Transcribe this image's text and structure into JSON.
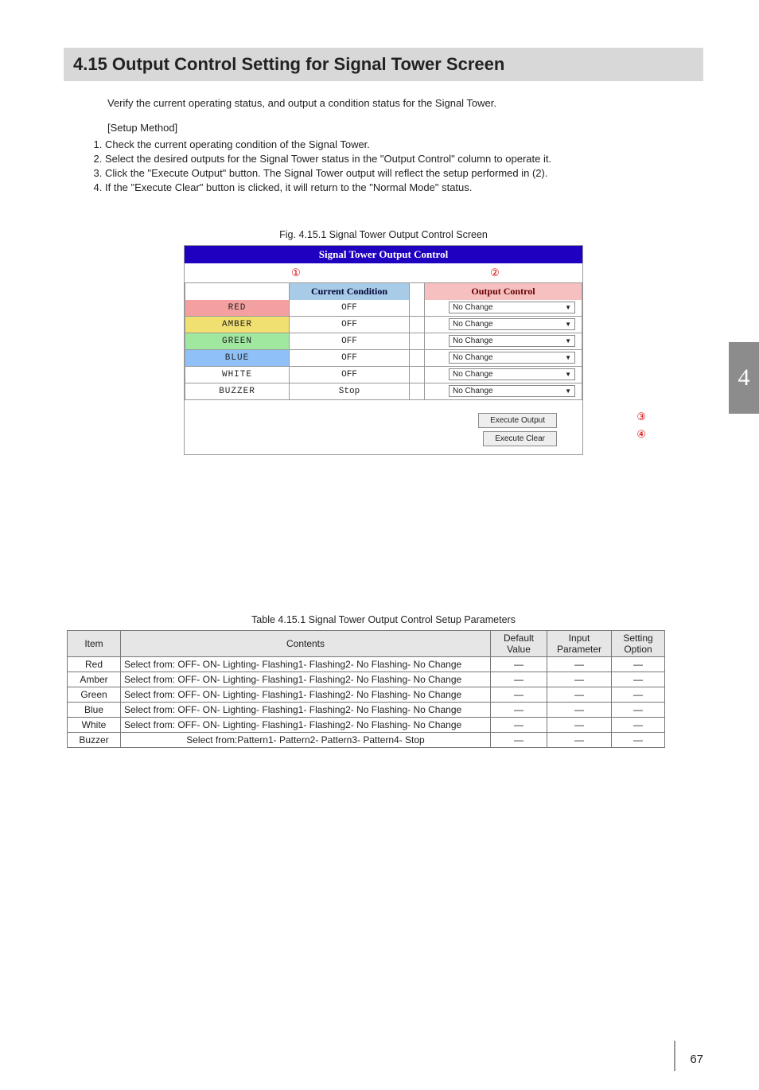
{
  "section_title": "4.15 Output Control Setting for Signal Tower Screen",
  "intro": "Verify the current operating status, and output a condition status for the Signal Tower.",
  "setup_label": "[Setup Method]",
  "setup_steps": [
    "Check the current operating condition of the Signal Tower.",
    "Select the desired outputs for the Signal Tower status in the \"Output Control\" column to operate it.",
    "Click the \"Execute Output\" button.  The Signal Tower output will reflect the setup performed in (2).",
    "If the \"Execute Clear\" button is clicked, it will return to the \"Normal Mode\" status."
  ],
  "fig_caption": "Fig. 4.15.1 Signal Tower Output Control Screen",
  "stoc": {
    "panel_title": "Signal Tower Output Control",
    "circle1": "①",
    "circle2": "②",
    "col_condition": "Current Condition",
    "col_output": "Output Control",
    "rows": [
      {
        "label": "RED",
        "bg": "#f5a0a0",
        "cond": "OFF",
        "out": "No Change"
      },
      {
        "label": "AMBER",
        "bg": "#f0e070",
        "cond": "OFF",
        "out": "No Change"
      },
      {
        "label": "GREEN",
        "bg": "#a0e8a0",
        "cond": "OFF",
        "out": "No Change"
      },
      {
        "label": "BLUE",
        "bg": "#90c0f8",
        "cond": "OFF",
        "out": "No Change"
      },
      {
        "label": "WHITE",
        "bg": "#ffffff",
        "cond": "OFF",
        "out": "No Change"
      },
      {
        "label": "BUZZER",
        "bg": "#ffffff",
        "cond": "Stop",
        "out": "No Change"
      }
    ],
    "btn_execute_output": "Execute Output",
    "btn_execute_clear": "Execute Clear",
    "callout3": "③",
    "callout4": "④"
  },
  "tbl_caption": "Table 4.15.1 Signal Tower Output Control Setup Parameters",
  "params": {
    "headers": {
      "item": "Item",
      "contents": "Contents",
      "default": "Default Value",
      "input": "Input Parameter",
      "setting": "Setting Option"
    },
    "rows": [
      {
        "item": "Red",
        "contents": "Select from: OFF- ON- Lighting- Flashing1- Flashing2- No Flashing- No Change",
        "d": "―",
        "i": "―",
        "s": "―"
      },
      {
        "item": "Amber",
        "contents": "Select from: OFF- ON- Lighting- Flashing1- Flashing2- No Flashing- No Change",
        "d": "―",
        "i": "―",
        "s": "―"
      },
      {
        "item": "Green",
        "contents": "Select from: OFF- ON- Lighting- Flashing1- Flashing2- No Flashing- No Change",
        "d": "―",
        "i": "―",
        "s": "―"
      },
      {
        "item": "Blue",
        "contents": "Select from: OFF- ON- Lighting- Flashing1- Flashing2- No Flashing- No Change",
        "d": "―",
        "i": "―",
        "s": "―"
      },
      {
        "item": "White",
        "contents": "Select from: OFF- ON- Lighting- Flashing1- Flashing2- No Flashing- No Change",
        "d": "―",
        "i": "―",
        "s": "―"
      },
      {
        "item": "Buzzer",
        "contents": "Select from:Pattern1- Pattern2- Pattern3- Pattern4- Stop",
        "d": "―",
        "i": "―",
        "s": "―"
      }
    ]
  },
  "chapter_tab": "4",
  "page_number": "67"
}
